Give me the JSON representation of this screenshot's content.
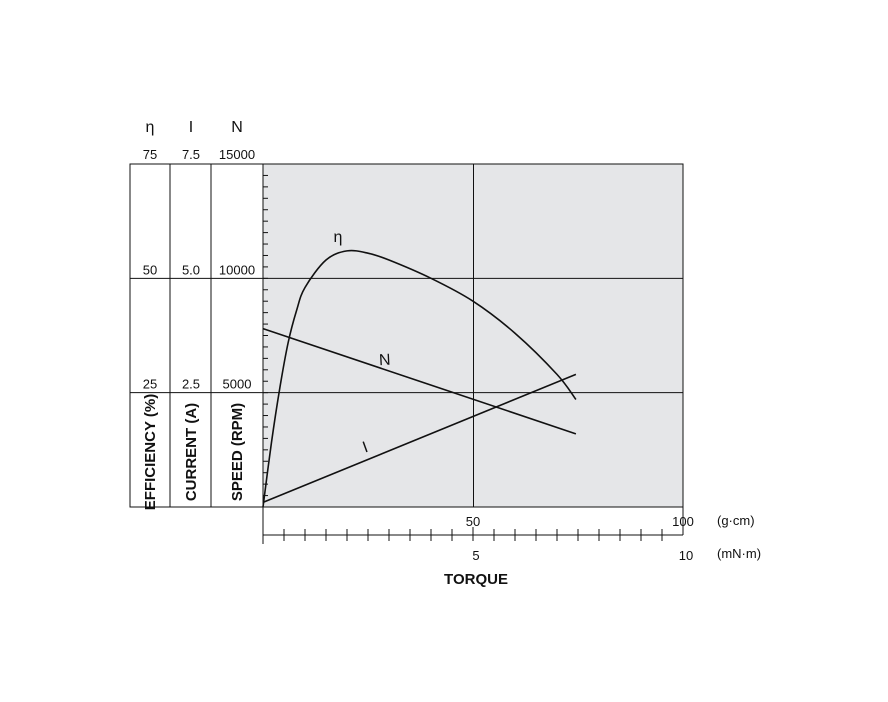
{
  "chart_data": {
    "type": "line",
    "xlabel": "TORQUE",
    "x_axes": [
      {
        "unit": "(g·cm)",
        "range": [
          0,
          100
        ],
        "tick_labels": [
          {
            "value": 50,
            "label": "50"
          },
          {
            "value": 100,
            "label": "100"
          }
        ],
        "minor_step": 5
      },
      {
        "unit": "(mN·m)",
        "range": [
          0,
          10
        ],
        "tick_labels": [
          {
            "value": 5,
            "label": "5"
          },
          {
            "value": 10,
            "label": "10"
          }
        ],
        "minor_step": 0.5
      }
    ],
    "y_axes": [
      {
        "symbol": "η",
        "label": "EFFICIENCY (%)",
        "range": [
          0,
          75
        ],
        "tick_labels": [
          "25",
          "50",
          "75"
        ]
      },
      {
        "symbol": "I",
        "label": "CURRENT (A)",
        "range": [
          0,
          7.5
        ],
        "tick_labels": [
          "2.5",
          "5.0",
          "7.5"
        ]
      },
      {
        "symbol": "N",
        "label": "SPEED (RPM)",
        "range": [
          0,
          15000
        ],
        "tick_labels": [
          "5000",
          "10000",
          "15000"
        ]
      }
    ],
    "grid": true,
    "series": [
      {
        "name": "η",
        "axis": 0,
        "x": [
          0,
          2,
          4,
          6,
          8,
          10,
          15,
          20,
          25,
          30,
          40,
          50,
          60,
          70,
          74.5
        ],
        "y": [
          0,
          14,
          26,
          36,
          43,
          48,
          54,
          56,
          55.5,
          54,
          50,
          45,
          38,
          29,
          23.5
        ]
      },
      {
        "name": "N",
        "axis": 2,
        "x": [
          0,
          74.5
        ],
        "y": [
          7800,
          3200
        ]
      },
      {
        "name": "I",
        "axis": 1,
        "x": [
          0,
          74.5
        ],
        "y": [
          0.1,
          2.9
        ]
      }
    ]
  }
}
